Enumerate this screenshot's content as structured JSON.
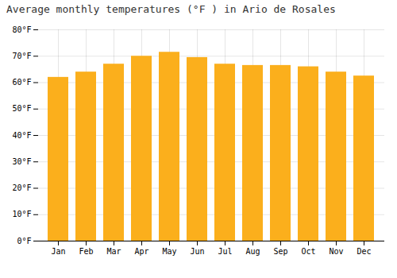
{
  "chart_data": {
    "type": "bar",
    "title": "Average monthly temperatures (°F ) in Ario de Rosales",
    "categories": [
      "Jan",
      "Feb",
      "Mar",
      "Apr",
      "May",
      "Jun",
      "Jul",
      "Aug",
      "Sep",
      "Oct",
      "Nov",
      "Dec"
    ],
    "values": [
      62.0,
      64.0,
      67.0,
      70.0,
      71.5,
      69.5,
      67.0,
      66.5,
      66.5,
      66.0,
      64.0,
      62.5
    ],
    "color": "#FBAF1C",
    "ylim": [
      0,
      80
    ],
    "yticks": [
      {
        "value": 0,
        "label": "0°F"
      },
      {
        "value": 10,
        "label": "10°F"
      },
      {
        "value": 20,
        "label": "20°F"
      },
      {
        "value": 30,
        "label": "30°F"
      },
      {
        "value": 40,
        "label": "40°F"
      },
      {
        "value": 50,
        "label": "50°F"
      },
      {
        "value": 60,
        "label": "60°F"
      },
      {
        "value": 70,
        "label": "70°F"
      },
      {
        "value": 80,
        "label": "80°F"
      }
    ],
    "grid": true
  }
}
